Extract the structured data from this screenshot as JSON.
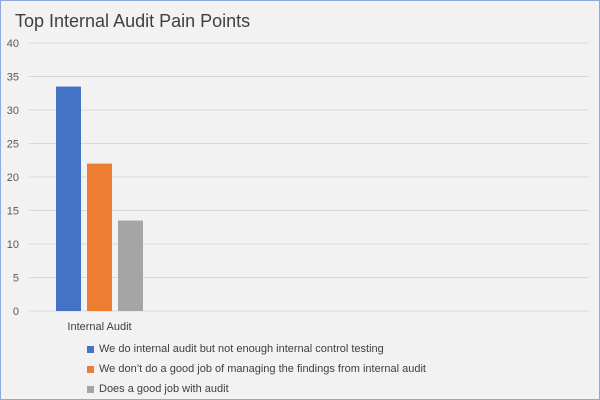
{
  "chart_data": {
    "type": "bar",
    "title": "Top Internal Audit Pain Points",
    "categories": [
      "Internal Audit"
    ],
    "series": [
      {
        "name": "We do internal audit but not enough internal control testing",
        "values": [
          33.5
        ],
        "color": "#4472c4"
      },
      {
        "name": "We don’t do a good job of managing the findings from internal audit",
        "values": [
          22
        ],
        "color": "#ed7d31"
      },
      {
        "name": "Does a good job with audit",
        "values": [
          13.5
        ],
        "color": "#a5a5a5"
      }
    ],
    "xlabel": "",
    "ylabel": "",
    "ylim": [
      0,
      40
    ],
    "yticks": [
      0,
      5,
      10,
      15,
      20,
      25,
      30,
      35,
      40
    ],
    "grid": true,
    "legend_position": "bottom-left"
  }
}
